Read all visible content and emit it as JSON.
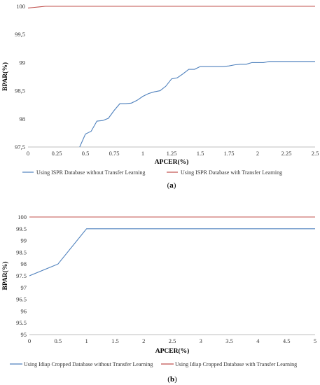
{
  "chart_data": [
    {
      "type": "line",
      "panel_label_open": "(",
      "panel_label_letter": "a",
      "panel_label_close": ")",
      "title": "",
      "xlabel": "APCER(%)",
      "ylabel": "BPAR(%)",
      "xlim": [
        0,
        2.5
      ],
      "ylim": [
        97.5,
        100
      ],
      "xticks": [
        "0",
        "0.25",
        "0.5",
        "0.75",
        "1",
        "1.25",
        "1.5",
        "1.75",
        "2",
        "2.25",
        "2.5"
      ],
      "yticks": [
        "97,5",
        "98",
        "98,5",
        "99",
        "99,5",
        "100"
      ],
      "grid": false,
      "legend_position": "bottom",
      "series": [
        {
          "name": "Using ISPR Database without Transfer Learning",
          "color": "#4f81bd",
          "x": [
            0.45,
            0.5,
            0.55,
            0.6,
            0.65,
            0.7,
            0.75,
            0.8,
            0.85,
            0.9,
            0.95,
            1.0,
            1.05,
            1.1,
            1.15,
            1.2,
            1.25,
            1.3,
            1.35,
            1.4,
            1.45,
            1.5,
            1.55,
            1.6,
            1.65,
            1.7,
            1.75,
            1.8,
            1.85,
            1.9,
            1.95,
            2.0,
            2.05,
            2.1,
            2.15,
            2.2,
            2.25,
            2.3,
            2.35,
            2.4,
            2.45,
            2.5
          ],
          "y": [
            97.5,
            97.73,
            97.78,
            97.96,
            97.97,
            98.01,
            98.15,
            98.27,
            98.27,
            98.28,
            98.33,
            98.4,
            98.45,
            98.48,
            98.5,
            98.58,
            98.71,
            98.73,
            98.8,
            98.88,
            98.88,
            98.93,
            98.93,
            98.93,
            98.93,
            98.93,
            98.94,
            98.96,
            98.97,
            98.97,
            99.0,
            99.0,
            99.0,
            99.02,
            99.02,
            99.02,
            99.02,
            99.02,
            99.02,
            99.02,
            99.02,
            99.02
          ]
        },
        {
          "name": "Using ISPR Database with Transfer Learning",
          "color": "#c0504d",
          "x": [
            0,
            0.05,
            0.1,
            0.15,
            0.2,
            2.5
          ],
          "y": [
            99.97,
            99.98,
            99.99,
            100,
            100,
            100
          ]
        }
      ]
    },
    {
      "type": "line",
      "panel_label_open": "(",
      "panel_label_letter": "b",
      "panel_label_close": ")",
      "title": "",
      "xlabel": "APCER(%)",
      "ylabel": "BPAR(%)",
      "xlim": [
        0,
        5
      ],
      "ylim": [
        95,
        100
      ],
      "xticks": [
        "0",
        "0.5",
        "1",
        "1.5",
        "2",
        "2.5",
        "3",
        "3.5",
        "4",
        "4.5",
        "5"
      ],
      "yticks": [
        "95",
        "95.5",
        "96",
        "96.5",
        "97",
        "97.5",
        "98",
        "98.5",
        "99",
        "99.5",
        "100"
      ],
      "grid": false,
      "legend_position": "bottom",
      "series": [
        {
          "name": "Using Idiap Cropped Database without Transfer Learning",
          "color": "#4f81bd",
          "x": [
            0,
            0.5,
            1,
            1.5,
            2,
            2.5,
            3,
            3.5,
            4,
            4.5,
            5
          ],
          "y": [
            97.5,
            98.0,
            99.5,
            99.5,
            99.5,
            99.5,
            99.5,
            99.5,
            99.5,
            99.5,
            99.5
          ]
        },
        {
          "name": "Using Idiap Cropped Database with  Transfer Learning",
          "color": "#c0504d",
          "x": [
            0,
            5
          ],
          "y": [
            100,
            100
          ]
        }
      ]
    }
  ]
}
